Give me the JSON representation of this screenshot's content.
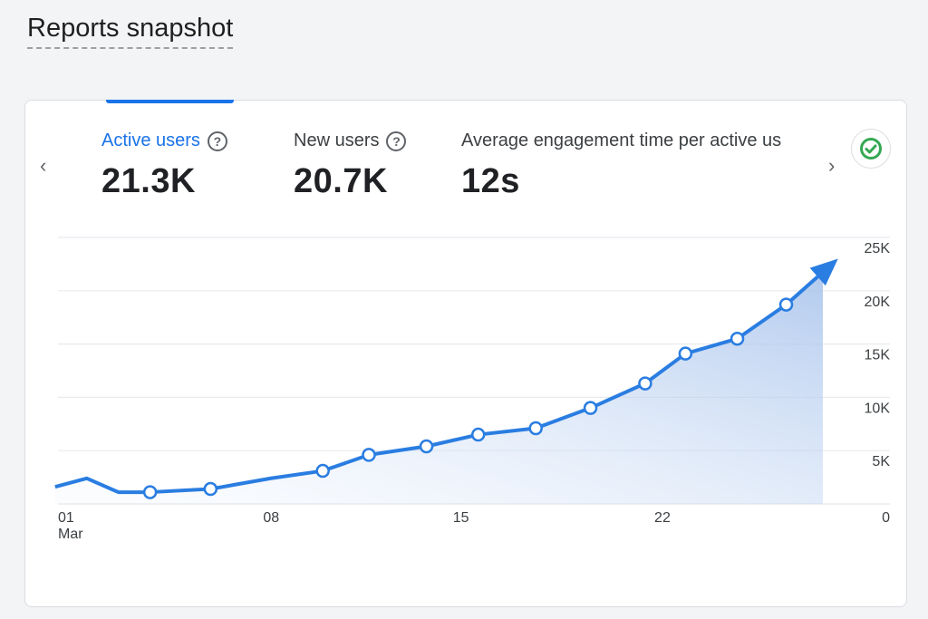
{
  "page": {
    "title": "Reports snapshot"
  },
  "metrics": [
    {
      "label": "Active users",
      "value": "21.3K",
      "active": true,
      "help_icon": "help-circle-icon"
    },
    {
      "label": "New users",
      "value": "20.7K",
      "active": false,
      "help_icon": "help-circle-icon"
    },
    {
      "label": "Average engagement time per active us",
      "value": "12s",
      "active": false
    }
  ],
  "nav": {
    "prev": "‹",
    "next": "›"
  },
  "status_icon": "check-circle-icon",
  "colors": {
    "accent": "#1a73e8",
    "line": "#2a7de1",
    "check": "#34a853"
  },
  "chart_data": {
    "type": "area",
    "x_ticks": [
      {
        "day": 1,
        "label": "01",
        "sublabel": "Mar"
      },
      {
        "day": 8,
        "label": "08"
      },
      {
        "day": 15,
        "label": "15"
      },
      {
        "day": 22,
        "label": "22"
      }
    ],
    "y_ticks": [
      "0",
      "5K",
      "10K",
      "15K",
      "20K",
      "25K"
    ],
    "ylim": [
      0,
      25000
    ],
    "grid": true,
    "series": [
      {
        "x": [
          0.9,
          2.0,
          3.1,
          4.2,
          6.3,
          8.4,
          10.2,
          11.8,
          13.8,
          15.6,
          17.6,
          19.5,
          21.4,
          22.8,
          24.6,
          26.3
        ],
        "y": [
          1600,
          2400,
          1100,
          1100,
          1400,
          2400,
          3100,
          4600,
          5400,
          6500,
          7100,
          9000,
          11300,
          14100,
          15500,
          18700
        ],
        "markers": [
          false,
          false,
          false,
          true,
          true,
          false,
          true,
          true,
          true,
          true,
          true,
          true,
          true,
          true,
          true,
          true
        ]
      }
    ],
    "trend_arrow": {
      "to_day": 28.1,
      "to_value": 23000
    }
  }
}
